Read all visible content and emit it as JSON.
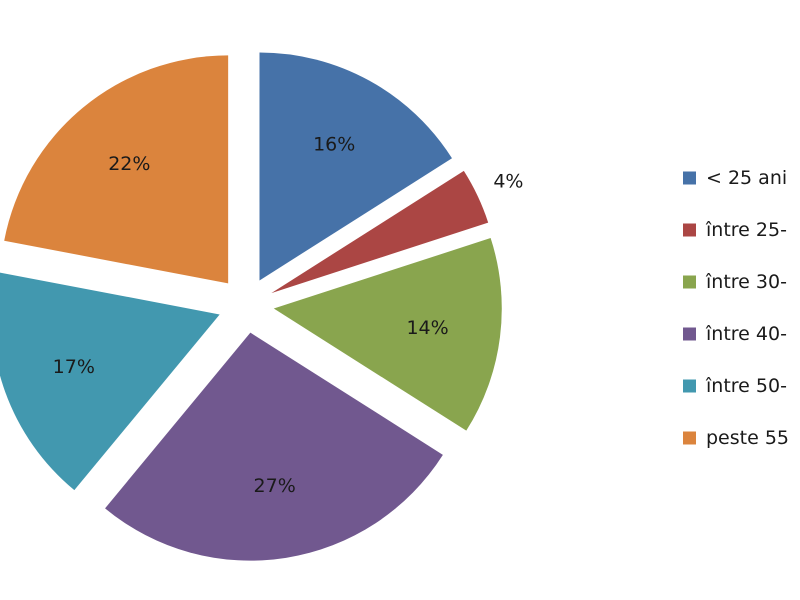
{
  "chart_data": {
    "type": "pie",
    "exploded": true,
    "legend_position": "right",
    "slices": [
      {
        "label": "< 25 ani",
        "value": 16,
        "data_label": "16%",
        "color": "#4672A8"
      },
      {
        "label": "între 25-",
        "value": 4,
        "data_label": "4%",
        "color": "#AB4644"
      },
      {
        "label": "între 30-",
        "value": 14,
        "data_label": "14%",
        "color": "#89A54E"
      },
      {
        "label": "între 40-",
        "value": 27,
        "data_label": "27%",
        "color": "#71588F"
      },
      {
        "label": "între 50-",
        "value": 17,
        "data_label": "17%",
        "color": "#4298AF"
      },
      {
        "label": "peste 55",
        "value": 22,
        "data_label": "22%",
        "color": "#DB843D"
      }
    ]
  }
}
